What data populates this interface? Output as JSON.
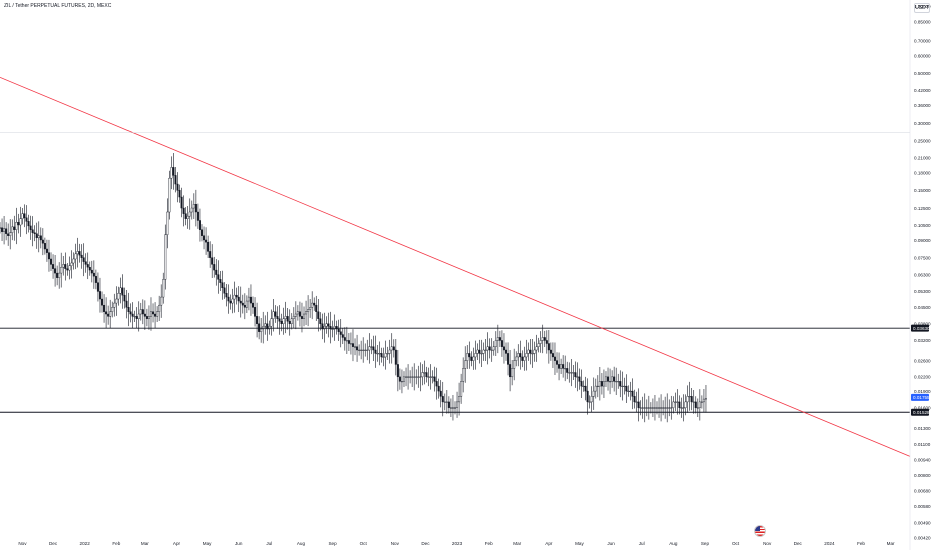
{
  "header": {
    "title": "ZIL / Tether PERPETUAL FUTURES, 2D, MEXC",
    "currency": "USDT"
  },
  "colors": {
    "candle": "#131722",
    "trendline": "#f23645",
    "hline": "#131722",
    "axis_text": "#131722",
    "last_price_bg": "#2962ff",
    "tag_bg": "#131722"
  },
  "icons": [
    "us-flag-icon"
  ],
  "chart_data": {
    "type": "candlestick",
    "title": "ZIL / Tether PERPETUAL FUTURES, 2D, MEXC",
    "y_scale": "log",
    "ylim": [
      0.00441,
      1.0
    ],
    "y_ticks": [
      "1.00000",
      "0.85000",
      "0.70000",
      "0.60000",
      "0.50000",
      "0.42000",
      "0.36000",
      "0.30000",
      "0.25000",
      "0.21000",
      "0.18000",
      "0.15000",
      "0.12500",
      "0.10500",
      "0.09000",
      "0.07500",
      "0.06300",
      "0.05300",
      "0.04500",
      "0.03800",
      "0.03200",
      "0.02600",
      "0.02200",
      "0.01900",
      "0.01600",
      "0.01300",
      "0.01100",
      "0.00940",
      "0.00800",
      "0.00680",
      "0.00580",
      "0.00490",
      "0.00420"
    ],
    "y_tick_values": [
      1.0,
      0.85,
      0.7,
      0.6,
      0.5,
      0.42,
      0.36,
      0.3,
      0.25,
      0.21,
      0.18,
      0.15,
      0.125,
      0.105,
      0.09,
      0.075,
      0.063,
      0.053,
      0.045,
      0.038,
      0.032,
      0.026,
      0.022,
      0.019,
      0.016,
      0.013,
      0.011,
      0.0094,
      0.008,
      0.0068,
      0.0058,
      0.0049,
      0.0042
    ],
    "x_ticks": [
      "Nov",
      "Dec",
      "2022",
      "Feb",
      "Mar",
      "Apr",
      "May",
      "Jun",
      "Jul",
      "Aug",
      "Sep",
      "Oct",
      "Nov",
      "Dec",
      "2023",
      "Feb",
      "Mar",
      "Apr",
      "May",
      "Jun",
      "Jul",
      "Aug",
      "Sep",
      "Oct",
      "Nov",
      "Dec",
      "2024",
      "Feb",
      "Mar"
    ],
    "x_tick_dates": [
      "2021-11-01",
      "2021-12-01",
      "2022-01-01",
      "2022-02-01",
      "2022-03-01",
      "2022-04-01",
      "2022-05-01",
      "2022-06-01",
      "2022-07-01",
      "2022-08-01",
      "2022-09-01",
      "2022-10-01",
      "2022-11-01",
      "2022-12-01",
      "2023-01-01",
      "2023-02-01",
      "2023-03-01",
      "2023-04-01",
      "2023-05-01",
      "2023-06-01",
      "2023-07-01",
      "2023-08-01",
      "2023-09-01",
      "2023-10-01",
      "2023-11-01",
      "2023-12-01",
      "2024-01-01",
      "2024-02-01",
      "2024-03-01"
    ],
    "xlim": [
      "2021-10-10",
      "2024-03-20"
    ],
    "horizontal_lines": [
      {
        "price": 0.0363,
        "label": "0.03630"
      },
      {
        "price": 0.01528,
        "label": "0.01528"
      }
    ],
    "trendline": {
      "start": {
        "date": "2021-10-10",
        "price": 0.48
      },
      "end": {
        "date": "2024-03-20",
        "price": 0.0097
      }
    },
    "last_price_label": "0.01755",
    "range_label": "0.25000",
    "series": [
      {
        "period_days": 2,
        "start_date": "2021-10-10",
        "closes": [
          0.102,
          0.098,
          0.101,
          0.096,
          0.094,
          0.097,
          0.103,
          0.1,
          0.108,
          0.105,
          0.112,
          0.118,
          0.113,
          0.109,
          0.104,
          0.1,
          0.097,
          0.096,
          0.092,
          0.094,
          0.09,
          0.087,
          0.082,
          0.079,
          0.074,
          0.07,
          0.067,
          0.064,
          0.061,
          0.064,
          0.068,
          0.07,
          0.067,
          0.066,
          0.069,
          0.071,
          0.074,
          0.078,
          0.08,
          0.077,
          0.075,
          0.072,
          0.07,
          0.068,
          0.066,
          0.064,
          0.062,
          0.058,
          0.053,
          0.049,
          0.046,
          0.043,
          0.042,
          0.041,
          0.043,
          0.045,
          0.047,
          0.049,
          0.052,
          0.055,
          0.051,
          0.048,
          0.045,
          0.043,
          0.042,
          0.041,
          0.041,
          0.04,
          0.042,
          0.044,
          0.042,
          0.041,
          0.04,
          0.041,
          0.043,
          0.042,
          0.041,
          0.043,
          0.046,
          0.05,
          0.06,
          0.095,
          0.12,
          0.17,
          0.19,
          0.175,
          0.16,
          0.15,
          0.14,
          0.125,
          0.118,
          0.112,
          0.115,
          0.12,
          0.125,
          0.13,
          0.12,
          0.11,
          0.1,
          0.094,
          0.09,
          0.088,
          0.08,
          0.075,
          0.07,
          0.066,
          0.063,
          0.06,
          0.058,
          0.055,
          0.052,
          0.05,
          0.048,
          0.047,
          0.049,
          0.051,
          0.05,
          0.048,
          0.047,
          0.046,
          0.045,
          0.048,
          0.05,
          0.047,
          0.045,
          0.041,
          0.038,
          0.035,
          0.036,
          0.037,
          0.038,
          0.036,
          0.037,
          0.04,
          0.043,
          0.041,
          0.04,
          0.039,
          0.038,
          0.04,
          0.041,
          0.039,
          0.038,
          0.04,
          0.041,
          0.042,
          0.043,
          0.041,
          0.04,
          0.042,
          0.043,
          0.044,
          0.045,
          0.047,
          0.046,
          0.043,
          0.04,
          0.038,
          0.036,
          0.037,
          0.038,
          0.037,
          0.036,
          0.036,
          0.037,
          0.036,
          0.035,
          0.034,
          0.033,
          0.032,
          0.032,
          0.031,
          0.031,
          0.03,
          0.03,
          0.029,
          0.029,
          0.029,
          0.029,
          0.029,
          0.029,
          0.03,
          0.03,
          0.029,
          0.028,
          0.028,
          0.028,
          0.027,
          0.027,
          0.028,
          0.028,
          0.029,
          0.03,
          0.029,
          0.025,
          0.022,
          0.021,
          0.021,
          0.022,
          0.022,
          0.022,
          0.022,
          0.022,
          0.022,
          0.022,
          0.022,
          0.022,
          0.023,
          0.023,
          0.022,
          0.022,
          0.022,
          0.022,
          0.021,
          0.02,
          0.019,
          0.018,
          0.017,
          0.017,
          0.017,
          0.016,
          0.016,
          0.016,
          0.016,
          0.017,
          0.018,
          0.021,
          0.024,
          0.026,
          0.028,
          0.027,
          0.026,
          0.027,
          0.028,
          0.029,
          0.028,
          0.028,
          0.029,
          0.029,
          0.03,
          0.029,
          0.029,
          0.03,
          0.032,
          0.033,
          0.032,
          0.03,
          0.029,
          0.028,
          0.025,
          0.022,
          0.024,
          0.026,
          0.027,
          0.028,
          0.027,
          0.026,
          0.027,
          0.028,
          0.029,
          0.028,
          0.028,
          0.029,
          0.03,
          0.031,
          0.032,
          0.033,
          0.032,
          0.031,
          0.029,
          0.028,
          0.027,
          0.026,
          0.025,
          0.024,
          0.025,
          0.024,
          0.024,
          0.023,
          0.023,
          0.023,
          0.023,
          0.022,
          0.022,
          0.021,
          0.02,
          0.02,
          0.019,
          0.017,
          0.017,
          0.018,
          0.019,
          0.02,
          0.02,
          0.021,
          0.02,
          0.021,
          0.022,
          0.021,
          0.021,
          0.022,
          0.021,
          0.021,
          0.021,
          0.02,
          0.02,
          0.02,
          0.019,
          0.019,
          0.019,
          0.018,
          0.017,
          0.017,
          0.016,
          0.016,
          0.016,
          0.016,
          0.016,
          0.016,
          0.016,
          0.016,
          0.016,
          0.016,
          0.016,
          0.016,
          0.016,
          0.016,
          0.016,
          0.016,
          0.016,
          0.017,
          0.017,
          0.017,
          0.016,
          0.016,
          0.016,
          0.017,
          0.018,
          0.018,
          0.017,
          0.017,
          0.016,
          0.016,
          0.017,
          0.017,
          0.0175,
          0.0176
        ]
      }
    ]
  }
}
